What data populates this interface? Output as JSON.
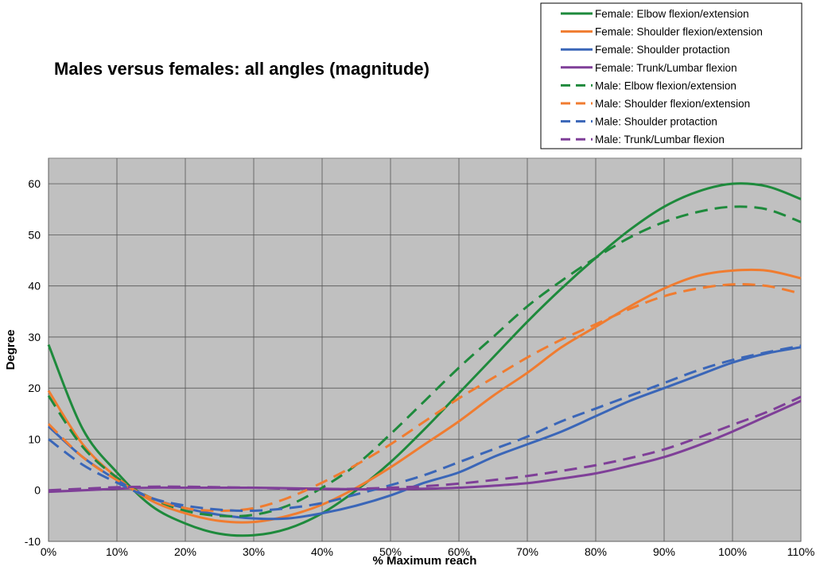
{
  "chart_data": {
    "type": "line",
    "title": "Males versus females: all angles (magnitude)",
    "xlabel": "% Maximum reach",
    "ylabel": "Degree",
    "xlim": [
      0,
      110
    ],
    "ylim": [
      -10,
      65
    ],
    "x_ticks": [
      0,
      10,
      20,
      30,
      40,
      50,
      60,
      70,
      80,
      90,
      100,
      110
    ],
    "x_tick_labels": [
      "0%",
      "10%",
      "20%",
      "30%",
      "40%",
      "50%",
      "60%",
      "70%",
      "80%",
      "90%",
      "100%",
      "110%"
    ],
    "y_ticks": [
      -10,
      0,
      10,
      20,
      30,
      40,
      50,
      60
    ],
    "y_tick_labels": [
      "-10",
      "0",
      "10",
      "20",
      "30",
      "40",
      "50",
      "60"
    ],
    "grid": true,
    "plot_background": "#c0c0c0",
    "legend_position": "top-right",
    "x": [
      0,
      5,
      10,
      15,
      20,
      25,
      30,
      35,
      40,
      45,
      50,
      55,
      60,
      65,
      70,
      75,
      80,
      85,
      90,
      95,
      100,
      105,
      110
    ],
    "series": [
      {
        "name": "Female: Elbow flexion/extension",
        "color": "#1e8a3c",
        "dash": "solid",
        "values": [
          28.5,
          12,
          3.5,
          -3,
          -6.5,
          -8.5,
          -8.8,
          -7.5,
          -4.5,
          0,
          5.5,
          12,
          19,
          26,
          33,
          39.5,
          45.5,
          51,
          55.5,
          58.5,
          60,
          59.5,
          57
        ]
      },
      {
        "name": "Female: Shoulder flexion/extension",
        "color": "#f07c30",
        "dash": "solid",
        "values": [
          19.5,
          9,
          2.5,
          -2,
          -4.5,
          -6,
          -6.2,
          -5,
          -2.8,
          0.5,
          4.5,
          9,
          13.5,
          18.5,
          23,
          28,
          32,
          36,
          39.5,
          42,
          43,
          43,
          41.5
        ]
      },
      {
        "name": "Female: Shoulder protaction",
        "color": "#3a66b8",
        "dash": "solid",
        "values": [
          12.5,
          6.5,
          2,
          -1.5,
          -3.5,
          -4.8,
          -5.5,
          -5.5,
          -4.5,
          -3,
          -1,
          1.5,
          3.5,
          6.5,
          9,
          11.5,
          14.5,
          17.5,
          20,
          22.5,
          25,
          26.8,
          28
        ]
      },
      {
        "name": "Female: Trunk/Lumbar flexion",
        "color": "#7f3f98",
        "dash": "solid",
        "values": [
          -0.3,
          0,
          0.3,
          0.5,
          0.5,
          0.5,
          0.5,
          0.4,
          0.3,
          0.2,
          0.2,
          0.3,
          0.5,
          0.9,
          1.4,
          2.3,
          3.3,
          4.8,
          6.5,
          8.8,
          11.5,
          14.5,
          17.5
        ]
      },
      {
        "name": "Male: Elbow flexion/extension",
        "color": "#1e8a3c",
        "dash": "dashed",
        "values": [
          18.5,
          8.5,
          2.5,
          -1.5,
          -4,
          -5,
          -4.8,
          -3,
          0.5,
          5,
          11,
          17.5,
          24,
          30,
          36,
          41,
          45.5,
          49.5,
          52.5,
          54.5,
          55.5,
          55,
          52.5
        ]
      },
      {
        "name": "Male: Shoulder flexion/extension",
        "color": "#f07c30",
        "dash": "dashed",
        "values": [
          13,
          6.5,
          2,
          -1.5,
          -3.5,
          -4,
          -3.5,
          -1.5,
          1.5,
          5,
          9,
          13.5,
          18,
          22,
          26,
          29.5,
          32.5,
          35.5,
          38,
          39.5,
          40.3,
          40,
          38.5
        ]
      },
      {
        "name": "Male: Shoulder protaction",
        "color": "#3a66b8",
        "dash": "dashed",
        "values": [
          10,
          5,
          1.5,
          -1.5,
          -3,
          -3.8,
          -4,
          -3.5,
          -2.5,
          -0.8,
          1,
          3,
          5.5,
          8,
          10.5,
          13.5,
          16,
          18.5,
          21,
          23.5,
          25.5,
          27,
          28.3
        ]
      },
      {
        "name": "Male: Trunk/Lumbar flexion",
        "color": "#7f3f98",
        "dash": "dashed",
        "values": [
          0,
          0.3,
          0.6,
          0.7,
          0.7,
          0.6,
          0.5,
          0.3,
          0.2,
          0.3,
          0.5,
          0.8,
          1.3,
          2,
          2.8,
          3.8,
          4.9,
          6.3,
          8,
          10.3,
          12.8,
          15.3,
          18.3
        ]
      }
    ]
  }
}
